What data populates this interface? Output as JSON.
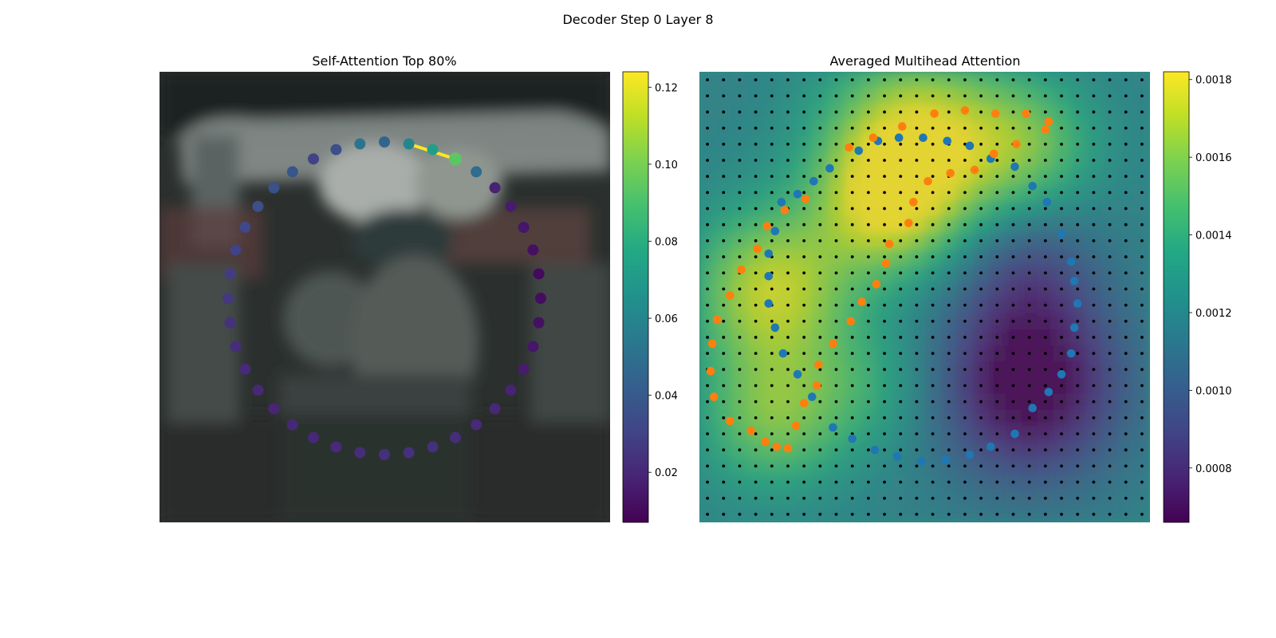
{
  "figure": {
    "suptitle": "Decoder Step 0 Layer 8"
  },
  "chart_data": [
    {
      "type": "scatter",
      "title": "Self-Attention Top 80%",
      "xlabel": "",
      "ylabel": "",
      "background": "blurred photo",
      "colormap": "viridis",
      "colorbar": {
        "range": [
          0.007,
          0.124
        ],
        "ticks": [
          0.02,
          0.04,
          0.06,
          0.08,
          0.1,
          0.12
        ],
        "tick_labels": [
          "0.02",
          "0.04",
          "0.06",
          "0.08",
          "0.10",
          "0.12"
        ]
      },
      "ring": {
        "n_points": 40,
        "weights": [
          0.045,
          0.06,
          0.072,
          0.094,
          0.048,
          0.018,
          0.016,
          0.014,
          0.012,
          0.01,
          0.011,
          0.012,
          0.014,
          0.016,
          0.018,
          0.02,
          0.021,
          0.022,
          0.023,
          0.023,
          0.023,
          0.022,
          0.021,
          0.02,
          0.02,
          0.019,
          0.02,
          0.021,
          0.022,
          0.024,
          0.026,
          0.028,
          0.03,
          0.032,
          0.035,
          0.036,
          0.038,
          0.03,
          0.035,
          0.052
        ]
      },
      "highlight_edge": {
        "from_point": 1,
        "to_point": 3,
        "value": 0.124
      }
    },
    {
      "type": "scatter",
      "title": "Averaged Multihead Attention",
      "xlabel": "",
      "ylabel": "",
      "background": "attention heatmap",
      "colormap": "viridis",
      "colorbar": {
        "range": [
          0.00066,
          0.00182
        ],
        "ticks": [
          0.0008,
          0.001,
          0.0012,
          0.0014,
          0.0016,
          0.0018
        ],
        "tick_labels": [
          "0.0008",
          "0.0010",
          "0.0012",
          "0.0014",
          "0.0016",
          "0.0018"
        ]
      },
      "heatmap": {
        "rows": 28,
        "cols": 28,
        "hot_spots": [
          {
            "r": 4,
            "c": 13,
            "w": 1.0,
            "s": 4.0
          },
          {
            "r": 8,
            "c": 11,
            "w": 0.6,
            "s": 3.0
          },
          {
            "r": 13,
            "c": 4,
            "w": 0.85,
            "s": 3.5
          },
          {
            "r": 21,
            "c": 4,
            "w": 0.6,
            "s": 3.2
          },
          {
            "r": 4,
            "c": 20,
            "w": 0.5,
            "s": 3.0
          },
          {
            "r": 19,
            "c": 10,
            "w": 0.3,
            "s": 3.0
          }
        ],
        "cold_spots": [
          {
            "r": 19,
            "c": 20,
            "w": 1.0,
            "s": 4.0
          },
          {
            "r": 12,
            "c": 20,
            "w": 0.4,
            "s": 3.0
          }
        ],
        "base_level": 0.45
      },
      "series": [
        {
          "color": "#1f77b4",
          "points": [
            [
              9.9,
              4.9
            ],
            [
              11.1,
              4.3
            ],
            [
              12.4,
              4.1
            ],
            [
              13.9,
              4.1
            ],
            [
              15.4,
              4.3
            ],
            [
              16.8,
              4.6
            ],
            [
              18.1,
              5.4
            ],
            [
              19.6,
              5.9
            ],
            [
              20.7,
              7.1
            ],
            [
              21.6,
              8.1
            ],
            [
              22.5,
              10.1
            ],
            [
              23.1,
              11.8
            ],
            [
              23.3,
              13.0
            ],
            [
              23.5,
              14.4
            ],
            [
              23.3,
              15.9
            ],
            [
              23.1,
              17.5
            ],
            [
              22.5,
              18.8
            ],
            [
              21.7,
              19.9
            ],
            [
              20.7,
              20.9
            ],
            [
              19.6,
              22.5
            ],
            [
              18.1,
              23.3
            ],
            [
              16.8,
              23.8
            ],
            [
              15.3,
              24.1
            ],
            [
              13.8,
              24.2
            ],
            [
              12.3,
              23.9
            ],
            [
              10.9,
              23.5
            ],
            [
              9.5,
              22.8
            ],
            [
              8.3,
              22.1
            ],
            [
              7.0,
              20.2
            ],
            [
              6.1,
              18.8
            ],
            [
              5.2,
              17.5
            ],
            [
              4.7,
              15.9
            ],
            [
              4.3,
              14.4
            ],
            [
              4.3,
              12.7
            ],
            [
              4.3,
              11.3
            ],
            [
              4.7,
              9.9
            ],
            [
              5.1,
              8.1
            ],
            [
              6.1,
              7.6
            ],
            [
              7.1,
              6.8
            ],
            [
              8.1,
              6.0
            ]
          ]
        },
        {
          "color": "#ff7f0e",
          "points": [
            [
              9.3,
              4.7
            ],
            [
              10.8,
              4.1
            ],
            [
              12.6,
              3.4
            ],
            [
              14.6,
              2.6
            ],
            [
              16.5,
              2.4
            ],
            [
              18.4,
              2.6
            ],
            [
              20.3,
              2.6
            ],
            [
              21.7,
              3.1
            ],
            [
              21.5,
              3.6
            ],
            [
              19.7,
              4.5
            ],
            [
              18.3,
              5.1
            ],
            [
              17.1,
              6.1
            ],
            [
              15.6,
              6.3
            ],
            [
              14.2,
              6.8
            ],
            [
              13.3,
              8.1
            ],
            [
              13.0,
              9.4
            ],
            [
              11.8,
              10.7
            ],
            [
              11.6,
              11.9
            ],
            [
              11.0,
              13.2
            ],
            [
              10.1,
              14.3
            ],
            [
              9.4,
              15.5
            ],
            [
              8.3,
              16.9
            ],
            [
              7.4,
              18.2
            ],
            [
              7.3,
              19.5
            ],
            [
              6.5,
              20.6
            ],
            [
              6.0,
              22.0
            ],
            [
              5.5,
              23.4
            ],
            [
              4.8,
              23.3
            ],
            [
              4.1,
              23.0
            ],
            [
              3.2,
              22.3
            ],
            [
              1.9,
              21.7
            ],
            [
              0.9,
              20.2
            ],
            [
              0.7,
              18.6
            ],
            [
              0.8,
              16.9
            ],
            [
              1.1,
              15.4
            ],
            [
              1.9,
              13.9
            ],
            [
              2.6,
              12.3
            ],
            [
              3.6,
              11.0
            ],
            [
              4.2,
              9.6
            ],
            [
              5.3,
              8.6
            ],
            [
              6.6,
              7.9
            ]
          ]
        }
      ],
      "grid_dots": {
        "count_per_side": 28,
        "color": "#000000"
      }
    }
  ]
}
